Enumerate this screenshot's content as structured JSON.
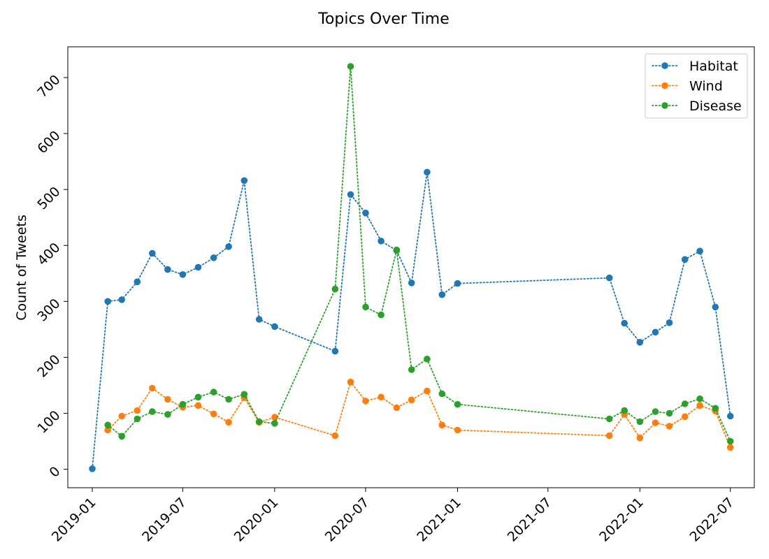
{
  "chart_data": {
    "type": "line",
    "title": "Topics Over Time",
    "xlabel": "",
    "ylabel": "Count of Tweets",
    "xlim": [
      "2018-11-13",
      "2022-08-18"
    ],
    "ylim": [
      -33,
      755
    ],
    "x_tick_labels": [
      "2019-01",
      "2019-07",
      "2020-01",
      "2020-07",
      "2021-01",
      "2021-07",
      "2022-01",
      "2022-07"
    ],
    "y_tick_labels": [
      0,
      100,
      200,
      300,
      400,
      500,
      600,
      700
    ],
    "grid": false,
    "legend_position": "top-right",
    "line_style": "dotted",
    "series": [
      {
        "name": "Habitat",
        "color": "#1f77b4",
        "points": [
          {
            "x": "2019-01-01",
            "y": 1
          },
          {
            "x": "2019-02-01",
            "y": 300
          },
          {
            "x": "2019-03-01",
            "y": 303
          },
          {
            "x": "2019-04-01",
            "y": 335
          },
          {
            "x": "2019-05-01",
            "y": 386
          },
          {
            "x": "2019-06-01",
            "y": 357
          },
          {
            "x": "2019-07-01",
            "y": 348
          },
          {
            "x": "2019-08-01",
            "y": 361
          },
          {
            "x": "2019-09-01",
            "y": 378
          },
          {
            "x": "2019-10-01",
            "y": 398
          },
          {
            "x": "2019-11-01",
            "y": 516
          },
          {
            "x": "2019-12-01",
            "y": 268
          },
          {
            "x": "2020-01-01",
            "y": 255
          },
          {
            "x": "2020-05-01",
            "y": 211
          },
          {
            "x": "2020-06-01",
            "y": 491
          },
          {
            "x": "2020-07-01",
            "y": 458
          },
          {
            "x": "2020-08-01",
            "y": 408
          },
          {
            "x": "2020-09-01",
            "y": 391
          },
          {
            "x": "2020-10-01",
            "y": 333
          },
          {
            "x": "2020-11-01",
            "y": 531
          },
          {
            "x": "2020-12-01",
            "y": 312
          },
          {
            "x": "2021-01-01",
            "y": 332
          },
          {
            "x": "2021-11-01",
            "y": 342
          },
          {
            "x": "2021-12-01",
            "y": 261
          },
          {
            "x": "2022-01-01",
            "y": 227
          },
          {
            "x": "2022-02-01",
            "y": 245
          },
          {
            "x": "2022-03-01",
            "y": 262
          },
          {
            "x": "2022-04-01",
            "y": 375
          },
          {
            "x": "2022-05-01",
            "y": 390
          },
          {
            "x": "2022-06-01",
            "y": 290
          },
          {
            "x": "2022-07-01",
            "y": 95
          }
        ]
      },
      {
        "name": "Wind",
        "color": "#ff7f0e",
        "points": [
          {
            "x": "2019-02-01",
            "y": 70
          },
          {
            "x": "2019-03-01",
            "y": 95
          },
          {
            "x": "2019-04-01",
            "y": 105
          },
          {
            "x": "2019-05-01",
            "y": 145
          },
          {
            "x": "2019-06-01",
            "y": 125
          },
          {
            "x": "2019-07-01",
            "y": 111
          },
          {
            "x": "2019-08-01",
            "y": 114
          },
          {
            "x": "2019-09-01",
            "y": 99
          },
          {
            "x": "2019-10-01",
            "y": 84
          },
          {
            "x": "2019-11-01",
            "y": 128
          },
          {
            "x": "2019-12-01",
            "y": 84
          },
          {
            "x": "2020-01-01",
            "y": 93
          },
          {
            "x": "2020-05-01",
            "y": 60
          },
          {
            "x": "2020-06-01",
            "y": 156
          },
          {
            "x": "2020-07-01",
            "y": 122
          },
          {
            "x": "2020-08-01",
            "y": 129
          },
          {
            "x": "2020-09-01",
            "y": 110
          },
          {
            "x": "2020-10-01",
            "y": 124
          },
          {
            "x": "2020-11-01",
            "y": 140
          },
          {
            "x": "2020-12-01",
            "y": 79
          },
          {
            "x": "2021-01-01",
            "y": 70
          },
          {
            "x": "2021-11-01",
            "y": 60
          },
          {
            "x": "2021-12-01",
            "y": 98
          },
          {
            "x": "2022-01-01",
            "y": 56
          },
          {
            "x": "2022-02-01",
            "y": 83
          },
          {
            "x": "2022-03-01",
            "y": 77
          },
          {
            "x": "2022-04-01",
            "y": 94
          },
          {
            "x": "2022-05-01",
            "y": 114
          },
          {
            "x": "2022-06-01",
            "y": 104
          },
          {
            "x": "2022-07-01",
            "y": 39
          }
        ]
      },
      {
        "name": "Disease",
        "color": "#2ca02c",
        "points": [
          {
            "x": "2019-02-01",
            "y": 79
          },
          {
            "x": "2019-03-01",
            "y": 59
          },
          {
            "x": "2019-04-01",
            "y": 90
          },
          {
            "x": "2019-05-01",
            "y": 103
          },
          {
            "x": "2019-06-01",
            "y": 98
          },
          {
            "x": "2019-07-01",
            "y": 116
          },
          {
            "x": "2019-08-01",
            "y": 129
          },
          {
            "x": "2019-09-01",
            "y": 138
          },
          {
            "x": "2019-10-01",
            "y": 125
          },
          {
            "x": "2019-11-01",
            "y": 134
          },
          {
            "x": "2019-12-01",
            "y": 85
          },
          {
            "x": "2020-01-01",
            "y": 82
          },
          {
            "x": "2020-05-01",
            "y": 322
          },
          {
            "x": "2020-06-01",
            "y": 720
          },
          {
            "x": "2020-07-01",
            "y": 290
          },
          {
            "x": "2020-08-01",
            "y": 276
          },
          {
            "x": "2020-09-01",
            "y": 392
          },
          {
            "x": "2020-10-01",
            "y": 178
          },
          {
            "x": "2020-11-01",
            "y": 197
          },
          {
            "x": "2020-12-01",
            "y": 135
          },
          {
            "x": "2021-01-01",
            "y": 116
          },
          {
            "x": "2021-11-01",
            "y": 90
          },
          {
            "x": "2021-12-01",
            "y": 105
          },
          {
            "x": "2022-01-01",
            "y": 85
          },
          {
            "x": "2022-02-01",
            "y": 103
          },
          {
            "x": "2022-03-01",
            "y": 100
          },
          {
            "x": "2022-04-01",
            "y": 117
          },
          {
            "x": "2022-05-01",
            "y": 126
          },
          {
            "x": "2022-06-01",
            "y": 109
          },
          {
            "x": "2022-07-01",
            "y": 50
          }
        ]
      }
    ]
  }
}
